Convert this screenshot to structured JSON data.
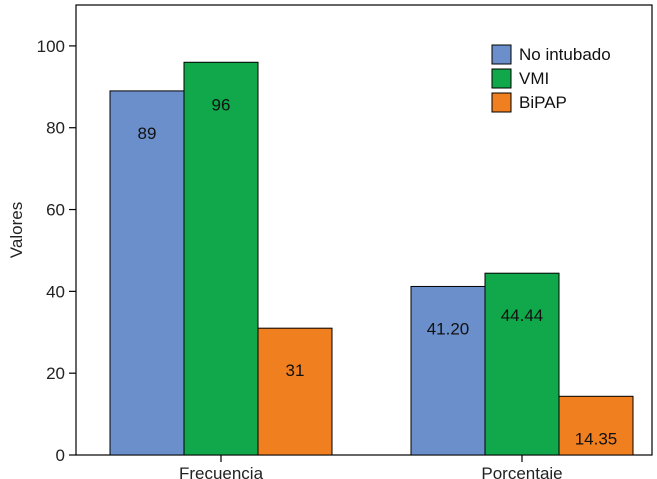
{
  "chart_data": {
    "type": "bar",
    "categories": [
      "Frecuencia",
      "Porcentaje"
    ],
    "series": [
      {
        "name": "No intubado",
        "color": "#6b8fcb",
        "values": [
          89,
          41.2
        ],
        "labels": [
          "89",
          "41.20"
        ]
      },
      {
        "name": "VMI",
        "color": "#10a84a",
        "values": [
          96,
          44.44
        ],
        "labels": [
          "96",
          "44.44"
        ]
      },
      {
        "name": "BiPAP",
        "color": "#f07f1f",
        "values": [
          31,
          14.35
        ],
        "labels": [
          "31",
          "14.35"
        ]
      }
    ],
    "ylabel": "Valores",
    "xlabel": "",
    "ylim": [
      0,
      110
    ],
    "yticks": [
      "0",
      "20",
      "40",
      "60",
      "80",
      "100"
    ],
    "grid": false,
    "legend_position": "top-right"
  }
}
